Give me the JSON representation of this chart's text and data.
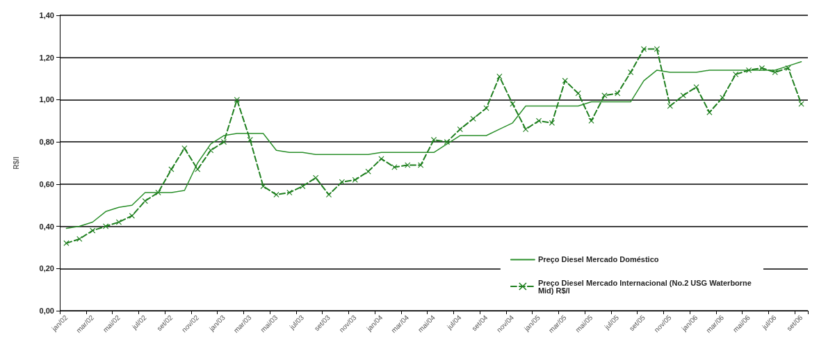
{
  "chart_data": {
    "type": "line",
    "ylabel": "R$/l",
    "categories": [
      "jan/02",
      null,
      "mar/02",
      null,
      "mai/02",
      null,
      "jul/02",
      null,
      "set/02",
      null,
      "nov/02",
      null,
      "jan/03",
      null,
      "mar/03",
      null,
      "mai/03",
      null,
      "jul/03",
      null,
      "set/03",
      null,
      "nov/03",
      null,
      "jan/04",
      null,
      "mar/04",
      null,
      "mai/04",
      null,
      "jul/04",
      null,
      "set/04",
      null,
      "nov/04",
      null,
      "jan/05",
      null,
      "mar/05",
      null,
      "mai/05",
      null,
      "jul/05",
      null,
      "set/05",
      null,
      "nov/05",
      null,
      "jan/06",
      null,
      "mar/06",
      null,
      "mai/06",
      null,
      "jul/06",
      null,
      "set/06"
    ],
    "series": [
      {
        "name": "Preço Diesel Mercado Doméstico",
        "color": "#2a8f2a",
        "marker": "none",
        "line_style": "solid",
        "values": [
          0.39,
          0.4,
          0.42,
          0.47,
          0.49,
          0.5,
          0.56,
          0.56,
          0.56,
          0.57,
          0.7,
          0.79,
          0.83,
          0.84,
          0.84,
          0.84,
          0.76,
          0.75,
          0.75,
          0.74,
          0.74,
          0.74,
          0.74,
          0.74,
          0.75,
          0.75,
          0.75,
          0.75,
          0.75,
          0.79,
          0.83,
          0.83,
          0.83,
          0.86,
          0.89,
          0.97,
          0.97,
          0.97,
          0.97,
          0.97,
          0.99,
          0.99,
          0.99,
          0.99,
          1.09,
          1.14,
          1.13,
          1.13,
          1.13,
          1.14,
          1.14,
          1.14,
          1.14,
          1.14,
          1.14,
          1.16,
          1.18
        ]
      },
      {
        "name": "Preço Diesel Mercado Internacional (No.2 USG Waterborne Mid) R$/l",
        "color": "#1e7f1e",
        "marker": "cross",
        "line_style": "dashed",
        "values": [
          0.32,
          0.34,
          0.38,
          0.4,
          0.42,
          0.45,
          0.52,
          0.56,
          0.67,
          0.77,
          0.67,
          0.76,
          0.8,
          1.0,
          0.81,
          0.59,
          0.55,
          0.56,
          0.59,
          0.63,
          0.55,
          0.61,
          0.62,
          0.66,
          0.72,
          0.68,
          0.69,
          0.69,
          0.81,
          0.8,
          0.86,
          0.91,
          0.96,
          1.11,
          0.98,
          0.86,
          0.9,
          0.89,
          1.09,
          1.03,
          0.9,
          1.02,
          1.03,
          1.13,
          1.24,
          1.24,
          0.97,
          1.02,
          1.06,
          0.94,
          1.01,
          1.12,
          1.14,
          1.15,
          1.13,
          1.15,
          0.98
        ]
      }
    ],
    "ylim": [
      0,
      1.4
    ],
    "yticks": [
      {
        "value": 0,
        "label": "0,00"
      },
      {
        "value": 0.2,
        "label": "0,20"
      },
      {
        "value": 0.4,
        "label": "0,40"
      },
      {
        "value": 0.6,
        "label": "0,60"
      },
      {
        "value": 0.8,
        "label": "0,80"
      },
      {
        "value": 1.0,
        "label": "1,00"
      },
      {
        "value": 1.2,
        "label": "1,20"
      },
      {
        "value": 1.4,
        "label": "1,40"
      }
    ],
    "grid": "y",
    "legend": "bottom right"
  }
}
